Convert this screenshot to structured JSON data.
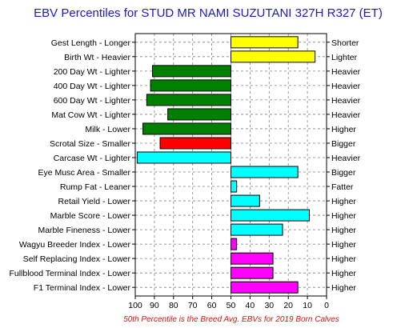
{
  "chart_data": {
    "type": "bar",
    "title": "EBV Percentiles for STUD MR NAMI SUZUTANI 327H R327 (ET)",
    "footnote": "50th Percentile is the Breed Avg. EBVs for 2019 Born Calves",
    "xlim": [
      100,
      0
    ],
    "x_reversed": true,
    "x_ticks": [
      "100",
      "90",
      "80",
      "70",
      "60",
      "50",
      "40",
      "30",
      "20",
      "10",
      "0"
    ],
    "baseline": 50,
    "grid": true,
    "traits": [
      {
        "label": "Gest Length - Longer",
        "right_label": "Shorter",
        "value": 15,
        "color": "#ffff00"
      },
      {
        "label": "Birth Wt - Heavier",
        "right_label": "Lighter",
        "value": 6,
        "color": "#ffff00"
      },
      {
        "label": "200 Day Wt - Lighter",
        "right_label": "Heavier",
        "value": 91,
        "color": "#008000"
      },
      {
        "label": "400 Day Wt - Lighter",
        "right_label": "Heavier",
        "value": 92,
        "color": "#008000"
      },
      {
        "label": "600 Day Wt - Lighter",
        "right_label": "Heavier",
        "value": 94,
        "color": "#008000"
      },
      {
        "label": "Mat Cow Wt - Lighter",
        "right_label": "Heavier",
        "value": 83,
        "color": "#008000"
      },
      {
        "label": "Milk - Lower",
        "right_label": "Higher",
        "value": 96,
        "color": "#008000"
      },
      {
        "label": "Scrotal Size - Smaller",
        "right_label": "Bigger",
        "value": 87,
        "color": "#ff0000"
      },
      {
        "label": "Carcase Wt - Lighter",
        "right_label": "Heavier",
        "value": 99,
        "color": "#00ffff"
      },
      {
        "label": "Eye Musc Area - Smaller",
        "right_label": "Bigger",
        "value": 15,
        "color": "#00ffff"
      },
      {
        "label": "Rump Fat - Leaner",
        "right_label": "Fatter",
        "value": 47,
        "color": "#00ffff"
      },
      {
        "label": "Retail Yield - Lower",
        "right_label": "Higher",
        "value": 35,
        "color": "#00ffff"
      },
      {
        "label": "Marble Score - Lower",
        "right_label": "Higher",
        "value": 9,
        "color": "#00ffff"
      },
      {
        "label": "Marble Fineness - Lower",
        "right_label": "Higher",
        "value": 23,
        "color": "#00ffff"
      },
      {
        "label": "Wagyu Breeder Index - Lower",
        "right_label": "Higher",
        "value": 47,
        "color": "#ff00ff"
      },
      {
        "label": "Self Replacing Index - Lower",
        "right_label": "Higher",
        "value": 28,
        "color": "#ff00ff"
      },
      {
        "label": "Fullblood Terminal Index - Lower",
        "right_label": "Higher",
        "value": 28,
        "color": "#ff00ff"
      },
      {
        "label": "F1 Terminal Index - Lower",
        "right_label": "Higher",
        "value": 15,
        "color": "#ff00ff"
      }
    ]
  }
}
